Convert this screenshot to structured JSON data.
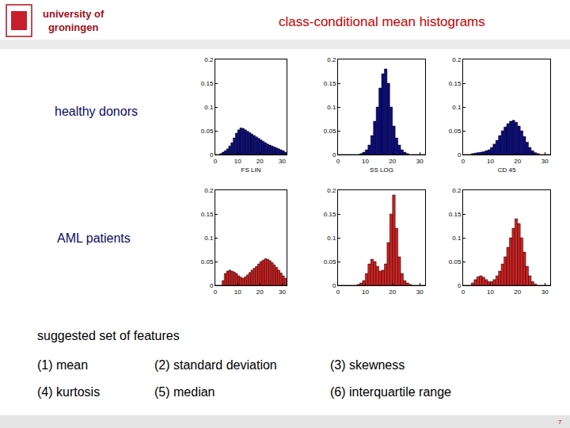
{
  "slide": {
    "logo": [
      "university of",
      "groningen"
    ],
    "title": "class-conditional mean histograms",
    "rows": [
      "healthy donors",
      "AML patients"
    ],
    "features_heading": "suggested set of features",
    "features": [
      "(1) mean",
      "(2) standard deviation",
      "(3) skewness",
      "(4) kurtosis",
      "(5) median",
      "(6) interquartile range"
    ],
    "page": "7"
  },
  "chart_data": [
    {
      "type": "bar",
      "x_label": "FS LIN",
      "color": "#0c0c80",
      "bins": [
        0,
        1,
        2,
        3,
        4,
        5,
        6,
        7,
        8,
        9,
        10,
        11,
        12,
        13,
        14,
        15,
        16,
        17,
        18,
        19,
        20,
        21,
        22,
        23,
        24,
        25,
        26,
        27,
        28,
        29,
        30,
        31,
        32
      ],
      "values": [
        0,
        0,
        0.002,
        0.005,
        0.008,
        0.012,
        0.018,
        0.025,
        0.035,
        0.045,
        0.052,
        0.056,
        0.055,
        0.052,
        0.049,
        0.046,
        0.043,
        0.04,
        0.037,
        0.034,
        0.031,
        0.028,
        0.025,
        0.022,
        0.02,
        0.018,
        0.016,
        0.014,
        0.012,
        0.01,
        0.008,
        0.005
      ],
      "xlim": [
        0,
        32
      ],
      "xticks": [
        0,
        10,
        20,
        30
      ],
      "ylim": [
        0,
        0.2
      ],
      "yticks": [
        0,
        0.05,
        0.1,
        0.15,
        0.2
      ],
      "grid": false
    },
    {
      "type": "bar",
      "x_label": "SS LOG",
      "color": "#0c0c80",
      "bins": [
        0,
        1,
        2,
        3,
        4,
        5,
        6,
        7,
        8,
        9,
        10,
        11,
        12,
        13,
        14,
        15,
        16,
        17,
        18,
        19,
        20,
        21,
        22,
        23,
        24,
        25,
        26,
        27,
        28,
        29,
        30,
        31,
        32
      ],
      "values": [
        0,
        0,
        0,
        0,
        0,
        0,
        0,
        0,
        0.002,
        0.005,
        0.01,
        0.02,
        0.04,
        0.07,
        0.1,
        0.14,
        0.17,
        0.18,
        0.15,
        0.1,
        0.06,
        0.035,
        0.02,
        0.01,
        0.005,
        0.002,
        0,
        0,
        0,
        0,
        0,
        0
      ],
      "xlim": [
        0,
        32
      ],
      "xticks": [
        0,
        10,
        20,
        30
      ],
      "ylim": [
        0,
        0.2
      ],
      "yticks": [
        0,
        0.05,
        0.1,
        0.15,
        0.2
      ],
      "grid": false
    },
    {
      "type": "bar",
      "x_label": "CD 45",
      "color": "#0c0c80",
      "bins": [
        0,
        1,
        2,
        3,
        4,
        5,
        6,
        7,
        8,
        9,
        10,
        11,
        12,
        13,
        14,
        15,
        16,
        17,
        18,
        19,
        20,
        21,
        22,
        23,
        24,
        25,
        26,
        27,
        28,
        29,
        30,
        31,
        32
      ],
      "values": [
        0,
        0,
        0,
        0.002,
        0.003,
        0.004,
        0.005,
        0.006,
        0.008,
        0.01,
        0.015,
        0.022,
        0.03,
        0.04,
        0.05,
        0.058,
        0.065,
        0.07,
        0.072,
        0.068,
        0.06,
        0.05,
        0.038,
        0.026,
        0.015,
        0.008,
        0.004,
        0.002,
        0,
        0,
        0,
        0
      ],
      "xlim": [
        0,
        32
      ],
      "xticks": [
        0,
        10,
        20,
        30
      ],
      "ylim": [
        0,
        0.2
      ],
      "yticks": [
        0,
        0.05,
        0.1,
        0.15,
        0.2
      ],
      "grid": false
    },
    {
      "type": "bar",
      "color": "#d42020",
      "bins": [
        0,
        1,
        2,
        3,
        4,
        5,
        6,
        7,
        8,
        9,
        10,
        11,
        12,
        13,
        14,
        15,
        16,
        17,
        18,
        19,
        20,
        21,
        22,
        23,
        24,
        25,
        26,
        27,
        28,
        29,
        30,
        31,
        32
      ],
      "values": [
        0,
        0,
        0,
        0.01,
        0.025,
        0.03,
        0.032,
        0.03,
        0.028,
        0.025,
        0.02,
        0.017,
        0.015,
        0.018,
        0.022,
        0.027,
        0.032,
        0.036,
        0.04,
        0.045,
        0.05,
        0.053,
        0.056,
        0.055,
        0.052,
        0.048,
        0.043,
        0.038,
        0.032,
        0.026,
        0.02,
        0.015
      ],
      "xlim": [
        0,
        32
      ],
      "xticks": [
        0,
        10,
        20,
        30
      ],
      "ylim": [
        0,
        0.2
      ],
      "yticks": [
        0,
        0.05,
        0.1,
        0.15,
        0.2
      ],
      "grid": false
    },
    {
      "type": "bar",
      "color": "#d42020",
      "bins": [
        0,
        1,
        2,
        3,
        4,
        5,
        6,
        7,
        8,
        9,
        10,
        11,
        12,
        13,
        14,
        15,
        16,
        17,
        18,
        19,
        20,
        21,
        22,
        23,
        24,
        25,
        26,
        27,
        28,
        29,
        30,
        31,
        32
      ],
      "values": [
        0,
        0,
        0,
        0,
        0,
        0,
        0,
        0.002,
        0.005,
        0.01,
        0.025,
        0.045,
        0.055,
        0.05,
        0.04,
        0.03,
        0.032,
        0.045,
        0.09,
        0.15,
        0.19,
        0.12,
        0.06,
        0.025,
        0.01,
        0.005,
        0.002,
        0,
        0,
        0,
        0,
        0
      ],
      "xlim": [
        0,
        32
      ],
      "xticks": [
        0,
        10,
        20,
        30
      ],
      "ylim": [
        0,
        0.2
      ],
      "yticks": [
        0,
        0.05,
        0.1,
        0.15,
        0.2
      ],
      "grid": false
    },
    {
      "type": "bar",
      "color": "#d42020",
      "bins": [
        0,
        1,
        2,
        3,
        4,
        5,
        6,
        7,
        8,
        9,
        10,
        11,
        12,
        13,
        14,
        15,
        16,
        17,
        18,
        19,
        20,
        21,
        22,
        23,
        24,
        25,
        26,
        27,
        28,
        29,
        30,
        31,
        32
      ],
      "values": [
        0,
        0,
        0,
        0.005,
        0.012,
        0.018,
        0.02,
        0.017,
        0.012,
        0.008,
        0.008,
        0.012,
        0.02,
        0.03,
        0.045,
        0.06,
        0.08,
        0.1,
        0.12,
        0.14,
        0.13,
        0.1,
        0.07,
        0.04,
        0.02,
        0.008,
        0.003,
        0,
        0,
        0,
        0,
        0
      ],
      "xlim": [
        0,
        32
      ],
      "xticks": [
        0,
        10,
        20,
        30
      ],
      "ylim": [
        0,
        0.2
      ],
      "yticks": [
        0,
        0.05,
        0.1,
        0.15,
        0.2
      ],
      "grid": false
    }
  ]
}
